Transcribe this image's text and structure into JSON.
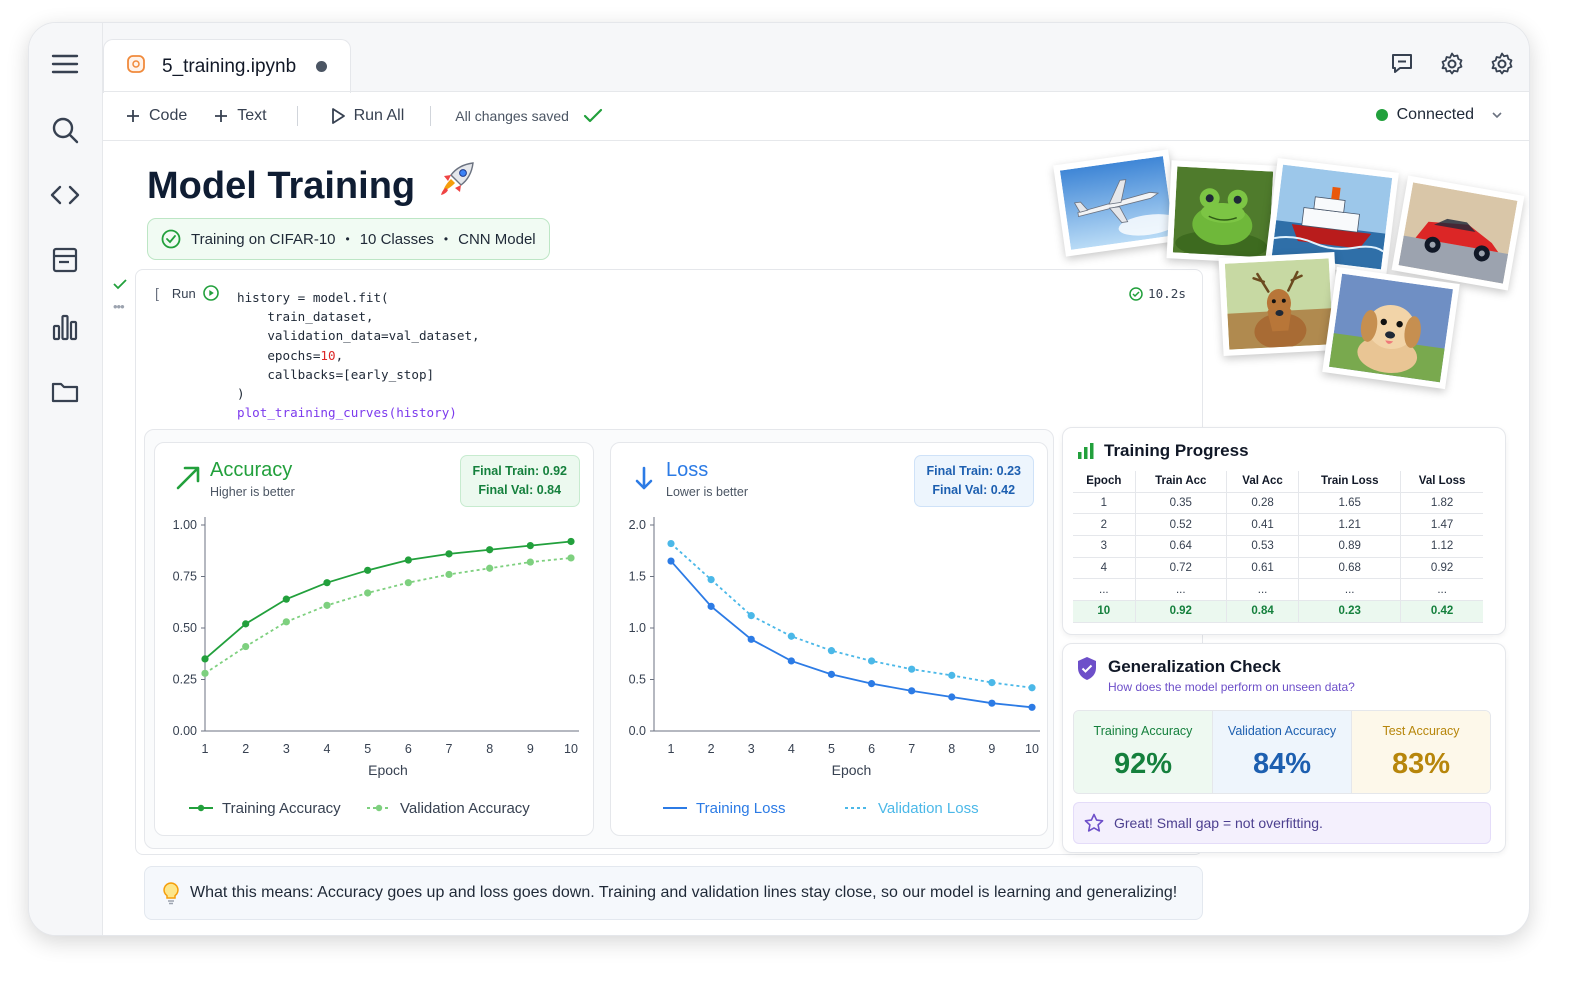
{
  "tab": {
    "filename": "5_training.ipynb"
  },
  "toolbar": {
    "code_label": "Code",
    "text_label": "Text",
    "run_all_label": "Run All",
    "save_status": "All changes saved",
    "connection": "Connected"
  },
  "header": {
    "title": "Model Training",
    "badge_parts": [
      "Training on CIFAR-10",
      "10 Classes",
      "CNN Model"
    ]
  },
  "cell": {
    "run_label": "Run",
    "exec_time": "10.2s",
    "code_lines": [
      "history = model.fit(",
      "    train_dataset,",
      "    validation_data=val_dataset,",
      "    epochs=10,",
      "    callbacks=[early_stop]",
      ")",
      "plot_training_curves(history)"
    ]
  },
  "accuracy_card": {
    "title": "Accuracy",
    "subtitle": "Higher is better",
    "final_train": "Final Train: 0.92",
    "final_val": "Final Val: 0.84"
  },
  "loss_card": {
    "title": "Loss",
    "subtitle": "Lower is better",
    "final_train": "Final Train: 0.23",
    "final_val": "Final Val: 0.42"
  },
  "chart_data": [
    {
      "type": "line",
      "title": "Accuracy",
      "xlabel": "Epoch",
      "ylabel": "",
      "x": [
        1,
        2,
        3,
        4,
        5,
        6,
        7,
        8,
        9,
        10
      ],
      "xticks": [
        "1",
        "2",
        "3",
        "4",
        "5",
        "6",
        "7",
        "8",
        "9",
        "10"
      ],
      "yticks": [
        "0.00",
        "0.25",
        "0.50",
        "0.75",
        "1.00"
      ],
      "ylim": [
        0,
        1
      ],
      "grid": false,
      "legend": "bottom",
      "series": [
        {
          "name": "Training Accuracy",
          "color": "#22a03c",
          "style": "solid",
          "values": [
            0.35,
            0.52,
            0.64,
            0.72,
            0.78,
            0.83,
            0.86,
            0.88,
            0.9,
            0.92
          ]
        },
        {
          "name": "Validation Accuracy",
          "color": "#7ed07f",
          "style": "dotted",
          "values": [
            0.28,
            0.41,
            0.53,
            0.61,
            0.67,
            0.72,
            0.76,
            0.79,
            0.82,
            0.84
          ]
        }
      ]
    },
    {
      "type": "line",
      "title": "Loss",
      "xlabel": "Epoch",
      "ylabel": "",
      "x": [
        1,
        2,
        3,
        4,
        5,
        6,
        7,
        8,
        9,
        10
      ],
      "xticks": [
        "1",
        "2",
        "3",
        "4",
        "5",
        "6",
        "7",
        "8",
        "9",
        "10"
      ],
      "yticks": [
        "0.0",
        "0.5",
        "1.0",
        "1.5",
        "2.0"
      ],
      "ylim": [
        0,
        2
      ],
      "grid": false,
      "legend": "bottom",
      "series": [
        {
          "name": "Training Loss",
          "color": "#2c7be5",
          "style": "solid",
          "values": [
            1.65,
            1.21,
            0.89,
            0.68,
            0.55,
            0.46,
            0.39,
            0.33,
            0.27,
            0.23
          ]
        },
        {
          "name": "Validation Loss",
          "color": "#4bb8e8",
          "style": "dotted",
          "values": [
            1.82,
            1.47,
            1.12,
            0.92,
            0.78,
            0.68,
            0.6,
            0.54,
            0.47,
            0.42
          ]
        }
      ]
    }
  ],
  "progress": {
    "title": "Training Progress",
    "columns": [
      "Epoch",
      "Train Acc",
      "Val Acc",
      "Train Loss",
      "Val Loss"
    ],
    "rows": [
      [
        "1",
        "0.35",
        "0.28",
        "1.65",
        "1.82"
      ],
      [
        "2",
        "0.52",
        "0.41",
        "1.21",
        "1.47"
      ],
      [
        "3",
        "0.64",
        "0.53",
        "0.89",
        "1.12"
      ],
      [
        "4",
        "0.72",
        "0.61",
        "0.68",
        "0.92"
      ],
      [
        "...",
        "...",
        "...",
        "...",
        "..."
      ],
      [
        "10",
        "0.92",
        "0.84",
        "0.23",
        "0.42"
      ]
    ]
  },
  "generalization": {
    "title": "Generalization Check",
    "subtitle": "How does the model perform on unseen data?",
    "metrics": [
      {
        "label": "Training Accuracy",
        "value": "92%",
        "color": "#15803d",
        "bg": "#eef9f1"
      },
      {
        "label": "Validation Accuracy",
        "value": "84%",
        "color": "#1d5fb0",
        "bg": "#eef5fc"
      },
      {
        "label": "Test Accuracy",
        "value": "83%",
        "color": "#b7860b",
        "bg": "#fdf8ea"
      }
    ],
    "note": "Great! Small gap = not overfitting."
  },
  "tip": "What this means: Accuracy goes up and loss goes down. Training and validation lines stay close, so our model is learning and generalizing!",
  "colors": {
    "accent_green": "#22a03c",
    "accent_blue": "#2c7be5",
    "purple": "#6d4fc9"
  },
  "icons": [
    "menu-icon",
    "search-icon",
    "code-icon",
    "panel-icon",
    "bar-chart-icon",
    "folder-icon",
    "comment-icon",
    "gear-icon",
    "settings-icon",
    "rocket-icon",
    "bulb-icon",
    "shield-icon",
    "star-icon"
  ]
}
